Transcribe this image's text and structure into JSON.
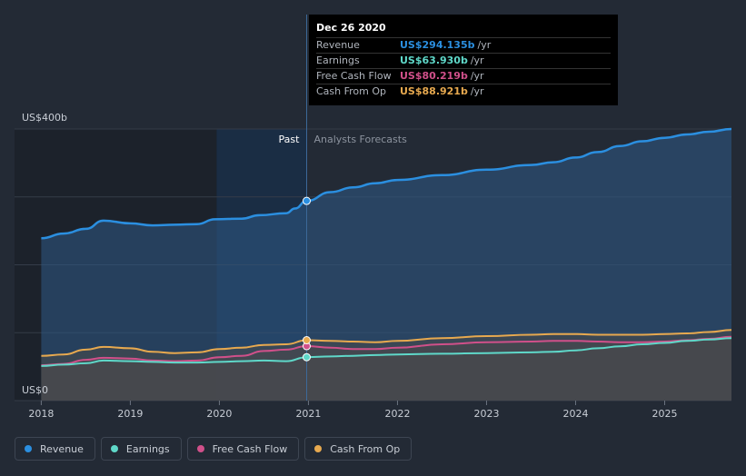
{
  "chart_data": {
    "type": "area",
    "title": "",
    "xlabel": "",
    "ylabel": "",
    "ylim": [
      0,
      400
    ],
    "y_axis": {
      "top_label": "US$400b",
      "bottom_label": "US$0"
    },
    "x_tick_labels": [
      "2018",
      "2019",
      "2020",
      "2021",
      "2022",
      "2023",
      "2024",
      "2025"
    ],
    "x_ticks": [
      2018,
      2019,
      2020,
      2021,
      2022,
      2023,
      2024,
      2025
    ],
    "xlim": [
      2017.7,
      2025.75
    ],
    "past_label": "Past",
    "forecast_label": "Analysts Forecasts",
    "divider_x": 2020.98,
    "series": [
      {
        "name": "Revenue",
        "color": "#2b8fe0",
        "x": [
          2018.0,
          2018.25,
          2018.5,
          2018.7,
          2019.0,
          2019.25,
          2019.5,
          2019.75,
          2019.95,
          2020.25,
          2020.45,
          2020.75,
          2020.85,
          2020.98,
          2021.25,
          2021.5,
          2021.75,
          2022.0,
          2022.5,
          2023.0,
          2023.5,
          2023.75,
          2024.0,
          2024.25,
          2024.5,
          2024.75,
          2025.0,
          2025.25,
          2025.5,
          2025.75
        ],
        "values": [
          239,
          246,
          253,
          265,
          261,
          258,
          259,
          260,
          267,
          268,
          273,
          276,
          283,
          294.135,
          307,
          314,
          320,
          325,
          332,
          340,
          347,
          351,
          358,
          366,
          375,
          382,
          387,
          392,
          396,
          400
        ]
      },
      {
        "name": "Earnings",
        "color": "#5fd8c9",
        "x": [
          2018.0,
          2018.25,
          2018.5,
          2018.7,
          2019.0,
          2019.25,
          2019.5,
          2019.75,
          2020.0,
          2020.25,
          2020.5,
          2020.75,
          2020.98,
          2021.25,
          2021.5,
          2021.75,
          2022.0,
          2022.5,
          2023.0,
          2023.5,
          2023.75,
          2024.0,
          2024.25,
          2024.5,
          2024.75,
          2025.0,
          2025.25,
          2025.5,
          2025.75
        ],
        "values": [
          51,
          53,
          55,
          59,
          58,
          57,
          56,
          56,
          57,
          58,
          59,
          58,
          63.93,
          65,
          66,
          67,
          68,
          69,
          70,
          71,
          72,
          74,
          77,
          80,
          83,
          85,
          88,
          90,
          92
        ]
      },
      {
        "name": "Free Cash Flow",
        "color": "#d0508a",
        "x": [
          2018.0,
          2018.25,
          2018.5,
          2018.7,
          2019.0,
          2019.25,
          2019.5,
          2019.75,
          2020.0,
          2020.25,
          2020.5,
          2020.75,
          2020.98,
          2021.25,
          2021.5,
          2021.75,
          2022.0,
          2022.5,
          2023.0,
          2023.5,
          2023.75,
          2024.0,
          2024.25,
          2024.5,
          2024.75,
          2025.0,
          2025.25,
          2025.5,
          2025.75
        ],
        "values": [
          52,
          54,
          60,
          63,
          62,
          59,
          58,
          59,
          64,
          66,
          73,
          75,
          80.219,
          78,
          76,
          76,
          78,
          83,
          86,
          87,
          88,
          88,
          87,
          86,
          86,
          87,
          89,
          91,
          94
        ]
      },
      {
        "name": "Cash From Op",
        "color": "#e7a94f",
        "x": [
          2018.0,
          2018.25,
          2018.5,
          2018.7,
          2019.0,
          2019.25,
          2019.5,
          2019.75,
          2020.0,
          2020.25,
          2020.5,
          2020.75,
          2020.98,
          2021.25,
          2021.5,
          2021.75,
          2022.0,
          2022.5,
          2023.0,
          2023.5,
          2023.75,
          2024.0,
          2024.25,
          2024.5,
          2024.75,
          2025.0,
          2025.25,
          2025.5,
          2025.75
        ],
        "values": [
          66,
          68,
          75,
          79,
          77,
          72,
          70,
          71,
          76,
          78,
          82,
          83,
          88.921,
          88,
          87,
          86,
          88,
          92,
          95,
          97,
          98,
          98,
          97,
          97,
          97,
          98,
          99,
          101,
          104
        ]
      }
    ]
  },
  "tooltip": {
    "date": "Dec 26 2020",
    "rows": [
      {
        "label": "Revenue",
        "value": "US$294.135b",
        "unit": "/yr",
        "color": "#2b8fe0"
      },
      {
        "label": "Earnings",
        "value": "US$63.930b",
        "unit": "/yr",
        "color": "#5fd8c9"
      },
      {
        "label": "Free Cash Flow",
        "value": "US$80.219b",
        "unit": "/yr",
        "color": "#d0508a"
      },
      {
        "label": "Cash From Op",
        "value": "US$88.921b",
        "unit": "/yr",
        "color": "#e7a94f"
      }
    ]
  },
  "legend": [
    {
      "label": "Revenue",
      "color": "#2b8fe0"
    },
    {
      "label": "Earnings",
      "color": "#5fd8c9"
    },
    {
      "label": "Free Cash Flow",
      "color": "#d0508a"
    },
    {
      "label": "Cash From Op",
      "color": "#e7a94f"
    }
  ]
}
